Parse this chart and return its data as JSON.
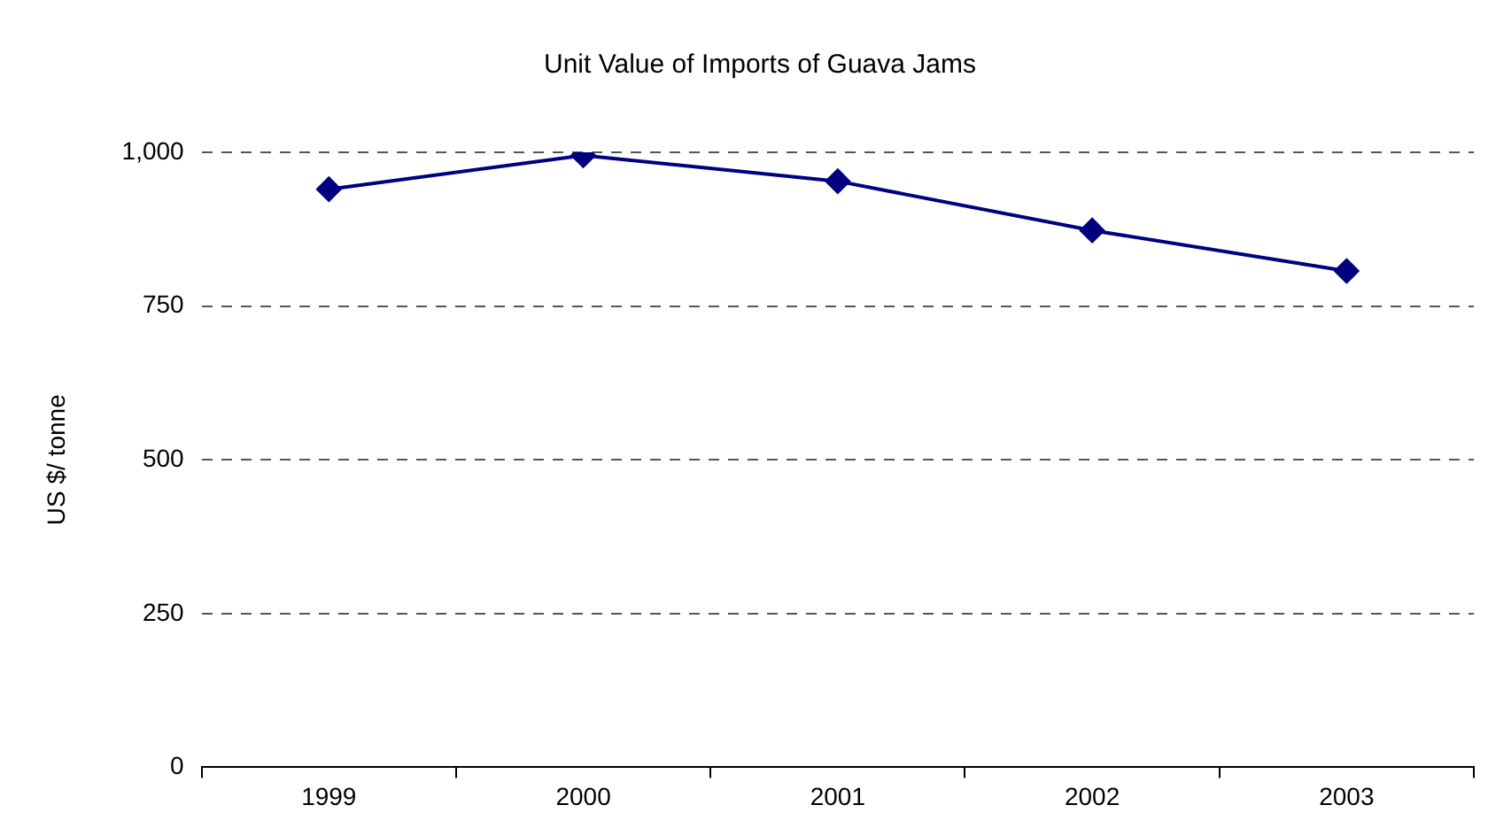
{
  "chart_data": {
    "type": "line",
    "title": "Unit Value of Imports of Guava Jams",
    "ylabel": "US $/ tonne",
    "categories": [
      "1999",
      "2000",
      "2001",
      "2002",
      "2003"
    ],
    "series": [
      {
        "color": "#000080",
        "values": [
          940,
          995,
          953,
          873,
          807
        ]
      }
    ],
    "ylim": [
      0,
      1000
    ],
    "yticks": [
      {
        "value": 0,
        "label": "0"
      },
      {
        "value": 250,
        "label": "250"
      },
      {
        "value": 500,
        "label": "500"
      },
      {
        "value": 750,
        "label": "750"
      },
      {
        "value": 1000,
        "label": "1,000"
      }
    ],
    "grid": "y",
    "legend": false,
    "marker": "diamond",
    "line_style": "solid"
  }
}
